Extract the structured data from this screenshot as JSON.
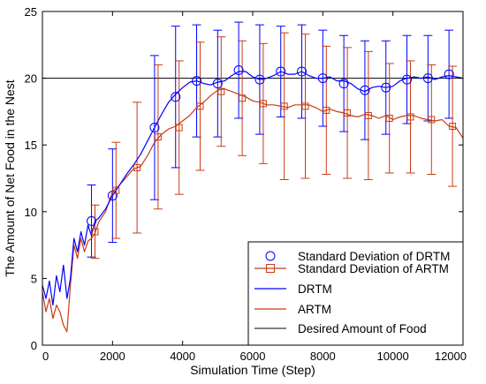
{
  "chart_data": {
    "type": "line",
    "title": "",
    "xlabel": "Simulation Time (Step)",
    "ylabel": "The Amount of Net Food in the Nest",
    "xlim": [
      0,
      12000
    ],
    "ylim": [
      0,
      25
    ],
    "xticks": [
      0,
      2000,
      4000,
      6000,
      8000,
      10000,
      12000
    ],
    "yticks": [
      0,
      5,
      10,
      15,
      20,
      25
    ],
    "grid": false,
    "legend_position": "bottom-right",
    "reference_line": {
      "name": "Desired Amount of Food",
      "y": 20,
      "color": "#000000"
    },
    "series": [
      {
        "name": "DRTM",
        "color": "#0000ff",
        "x": [
          0,
          100,
          200,
          300,
          400,
          500,
          600,
          700,
          800,
          900,
          1000,
          1100,
          1200,
          1300,
          1400,
          1500,
          1600,
          1800,
          2000,
          2200,
          2400,
          2600,
          2800,
          3000,
          3200,
          3400,
          3600,
          3800,
          4000,
          4200,
          4400,
          4600,
          4800,
          5000,
          5200,
          5400,
          5600,
          5800,
          6000,
          6200,
          6400,
          6600,
          6800,
          7000,
          7200,
          7400,
          7600,
          7800,
          8000,
          8200,
          8400,
          8600,
          8800,
          9000,
          9200,
          9400,
          9600,
          9800,
          10000,
          10200,
          10400,
          10600,
          10800,
          11000,
          11200,
          11400,
          11600,
          11800,
          12000
        ],
        "y": [
          4.5,
          3.5,
          4.8,
          3.0,
          5.2,
          4.0,
          6.0,
          3.5,
          5.0,
          8.0,
          7.0,
          8.5,
          7.5,
          9.0,
          8.2,
          9.3,
          9.5,
          10.2,
          11.2,
          12.0,
          12.8,
          13.5,
          14.3,
          15.3,
          16.3,
          17.3,
          18.2,
          18.8,
          19.3,
          19.7,
          19.8,
          19.6,
          19.5,
          19.7,
          19.8,
          20.2,
          20.5,
          20.5,
          20.1,
          19.9,
          20.0,
          20.2,
          20.5,
          20.3,
          20.3,
          20.5,
          20.2,
          20.0,
          20.0,
          20.1,
          19.8,
          19.8,
          19.6,
          19.2,
          19.0,
          19.3,
          19.4,
          19.3,
          19.4,
          19.8,
          20.0,
          20.1,
          20.0,
          20.1,
          19.9,
          20.1,
          20.2,
          20.1,
          20.0
        ]
      },
      {
        "name": "ARTM",
        "color": "#c83c14",
        "x": [
          0,
          100,
          200,
          300,
          400,
          500,
          600,
          700,
          800,
          900,
          1000,
          1100,
          1200,
          1300,
          1400,
          1500,
          1600,
          1800,
          2000,
          2200,
          2400,
          2600,
          2800,
          3000,
          3200,
          3400,
          3600,
          3800,
          4000,
          4200,
          4400,
          4600,
          4800,
          5000,
          5200,
          5400,
          5600,
          5800,
          6000,
          6200,
          6400,
          6600,
          6800,
          7000,
          7200,
          7400,
          7600,
          7800,
          8000,
          8200,
          8400,
          8600,
          8800,
          9000,
          9200,
          9400,
          9600,
          9800,
          10000,
          10200,
          10400,
          10600,
          10800,
          11000,
          11200,
          11400,
          11600,
          11800,
          12000
        ],
        "y": [
          4.0,
          2.5,
          3.5,
          2.0,
          3.0,
          2.5,
          1.5,
          1.0,
          4.5,
          7.5,
          6.5,
          8.0,
          7.0,
          7.8,
          8.0,
          8.4,
          9.2,
          10.0,
          11.5,
          12.0,
          12.6,
          13.2,
          13.4,
          14.2,
          15.2,
          15.8,
          16.2,
          16.4,
          16.8,
          17.2,
          17.8,
          18.2,
          18.7,
          19.1,
          19.2,
          19.0,
          18.8,
          18.6,
          18.3,
          18.2,
          18.0,
          18.0,
          17.9,
          17.8,
          18.0,
          18.0,
          18.0,
          17.8,
          17.5,
          17.7,
          17.5,
          17.4,
          17.2,
          17.1,
          17.3,
          17.2,
          17.0,
          17.2,
          16.9,
          17.1,
          17.2,
          17.2,
          17.0,
          16.9,
          16.8,
          16.9,
          16.4,
          16.3,
          15.5
        ]
      }
    ],
    "error_series": [
      {
        "name": "Standard Deviation of DRTM",
        "color": "#0000ff",
        "marker": "circle",
        "x": [
          1400,
          2000,
          3200,
          3800,
          4400,
          5000,
          5600,
          6200,
          6800,
          7400,
          8000,
          8600,
          9200,
          9800,
          10400,
          11000,
          11600
        ],
        "y": [
          9.3,
          11.2,
          16.3,
          18.6,
          19.8,
          19.6,
          20.6,
          19.9,
          20.5,
          20.5,
          20.0,
          19.6,
          19.1,
          19.3,
          19.9,
          20.0,
          20.3
        ],
        "err": [
          2.7,
          3.5,
          5.4,
          5.3,
          4.2,
          4.0,
          3.6,
          4.1,
          3.4,
          3.5,
          3.6,
          3.6,
          3.7,
          3.5,
          3.3,
          3.2,
          3.3
        ]
      },
      {
        "name": "Standard Deviation of ARTM",
        "color": "#c83c14",
        "marker": "square",
        "x": [
          1500,
          2100,
          2700,
          3300,
          3900,
          4500,
          5100,
          5700,
          6300,
          6900,
          7500,
          8100,
          8700,
          9300,
          9900,
          10500,
          11100,
          11700
        ],
        "y": [
          8.5,
          11.6,
          13.3,
          15.6,
          16.3,
          17.9,
          19.0,
          18.5,
          18.1,
          17.9,
          17.9,
          17.6,
          17.4,
          17.2,
          17.0,
          17.1,
          16.9,
          16.4
        ],
        "err": [
          2.0,
          3.6,
          4.9,
          5.4,
          5.0,
          4.8,
          4.1,
          4.3,
          4.5,
          5.5,
          5.4,
          4.8,
          4.9,
          4.8,
          4.1,
          4.2,
          4.1,
          4.5
        ]
      }
    ]
  },
  "legend": {
    "items": [
      {
        "key": "std_drtm",
        "label": "Standard Deviation of DRTM"
      },
      {
        "key": "std_artm",
        "label": "Standard Deviation of ARTM"
      },
      {
        "key": "drtm",
        "label": "DRTM"
      },
      {
        "key": "artm",
        "label": "ARTM"
      },
      {
        "key": "desired",
        "label": "Desired Amount of Food"
      }
    ]
  }
}
